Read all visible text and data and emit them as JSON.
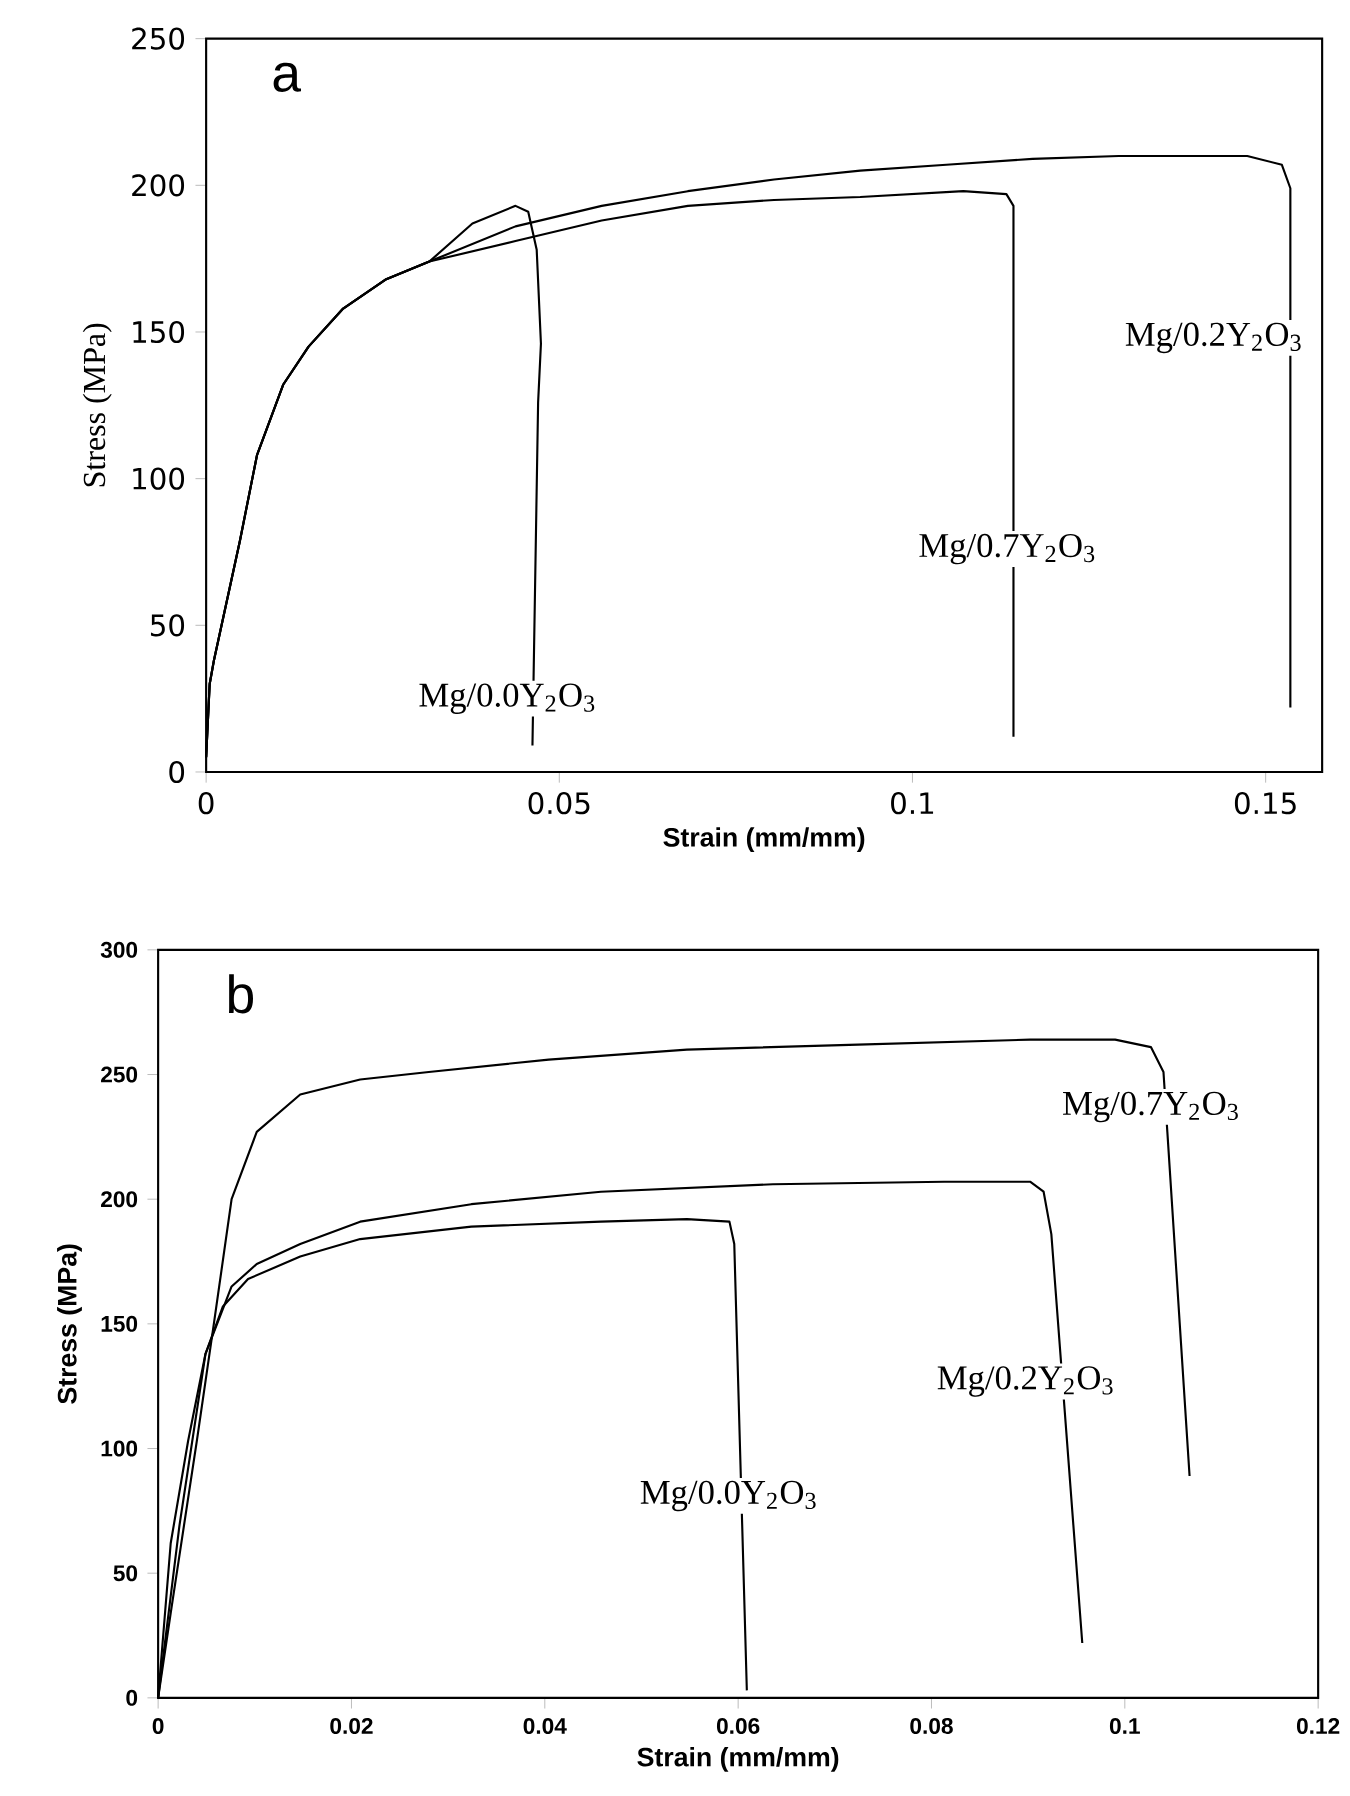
{
  "chart_data": [
    {
      "type": "line",
      "title": "a",
      "xlabel": "Strain (mm/mm)",
      "ylabel": "Stress (MPa)",
      "xlim": [
        0,
        0.158
      ],
      "ylim": [
        0,
        250
      ],
      "xticks": [
        0,
        0.05,
        0.1,
        0.15
      ],
      "yticks": [
        0,
        50,
        100,
        150,
        200,
        250
      ],
      "grid": false,
      "marker": "none",
      "line_style": "solid",
      "series": [
        {
          "name": "Mg/0.0Y$_{2}$O$_{3}$",
          "color": "#000000",
          "x": [
            0,
            0.0005,
            0.0011,
            0.0048,
            0.0072,
            0.0109,
            0.0145,
            0.0194,
            0.0255,
            0.0316,
            0.0377,
            0.0438,
            0.0456,
            0.0468,
            0.0474,
            0.047,
            0.0462
          ],
          "values": [
            5,
            30,
            38,
            79,
            108,
            132,
            145,
            158,
            168,
            174,
            187,
            193,
            191,
            178,
            146,
            126,
            9
          ]
        },
        {
          "name": "Mg/0.7Y$_{2}$O$_{3}$",
          "color": "#000000",
          "x": [
            0,
            0.0005,
            0.0011,
            0.0048,
            0.0072,
            0.0109,
            0.0145,
            0.0194,
            0.0255,
            0.0316,
            0.0438,
            0.056,
            0.0682,
            0.0804,
            0.0926,
            0.1072,
            0.1133,
            0.1143,
            0.1143
          ],
          "values": [
            5,
            30,
            38,
            79,
            108,
            132,
            145,
            158,
            168,
            174,
            181,
            188,
            193,
            195,
            196,
            198,
            197,
            193,
            12
          ]
        },
        {
          "name": "Mg/0.2Y$_{2}$O$_{3}$",
          "color": "#000000",
          "x": [
            0,
            0.0005,
            0.0011,
            0.0048,
            0.0072,
            0.0109,
            0.0145,
            0.0194,
            0.0255,
            0.0316,
            0.0438,
            0.056,
            0.0682,
            0.0804,
            0.0926,
            0.1048,
            0.117,
            0.1292,
            0.1474,
            0.1523,
            0.1535,
            0.1535
          ],
          "values": [
            5,
            30,
            38,
            79,
            108,
            132,
            145,
            158,
            168,
            174,
            186,
            193,
            198,
            202,
            205,
            207,
            209,
            210,
            210,
            207,
            199,
            22
          ]
        }
      ]
    },
    {
      "type": "line",
      "title": "b",
      "xlabel": "Strain (mm/mm)",
      "ylabel": "Stress (MPa)",
      "xlim": [
        0,
        0.12
      ],
      "ylim": [
        0,
        300
      ],
      "xticks": [
        0,
        0.02,
        0.04,
        0.06,
        0.08,
        0.1,
        0.12
      ],
      "yticks": [
        0,
        50,
        100,
        150,
        200,
        250,
        300
      ],
      "grid": false,
      "marker": "none",
      "line_style": "solid",
      "series": [
        {
          "name": "Mg/0.0Y$_{2}$O$_{3}$",
          "color": "#000000",
          "x": [
            0,
            0.0013,
            0.0031,
            0.0049,
            0.0067,
            0.0093,
            0.0147,
            0.0209,
            0.0324,
            0.0458,
            0.0547,
            0.0591,
            0.0596,
            0.0609
          ],
          "values": [
            0,
            62,
            103,
            138,
            157,
            168,
            177,
            184,
            189,
            191,
            192,
            191,
            182,
            3
          ]
        },
        {
          "name": "Mg/0.2Y$_{2}$O$_{3}$",
          "color": "#000000",
          "x": [
            0,
            0.0022,
            0.0049,
            0.0076,
            0.0102,
            0.0147,
            0.0209,
            0.0324,
            0.0458,
            0.0636,
            0.0813,
            0.0902,
            0.0916,
            0.0924,
            0.0956
          ],
          "values": [
            0,
            69,
            138,
            165,
            174,
            182,
            191,
            198,
            203,
            206,
            207,
            207,
            203,
            186,
            22
          ]
        },
        {
          "name": "Mg/0.7Y$_{2}$O$_{3}$",
          "color": "#000000",
          "x": [
            0,
            0.0013,
            0.004,
            0.0058,
            0.0076,
            0.0102,
            0.0147,
            0.0209,
            0.028,
            0.0404,
            0.0547,
            0.0724,
            0.0902,
            0.099,
            0.1027,
            0.104,
            0.1044,
            0.1067
          ],
          "values": [
            0,
            34,
            103,
            151,
            200,
            227,
            242,
            248,
            251,
            256,
            260,
            262,
            264,
            264,
            261,
            251,
            227,
            89
          ]
        }
      ]
    }
  ]
}
